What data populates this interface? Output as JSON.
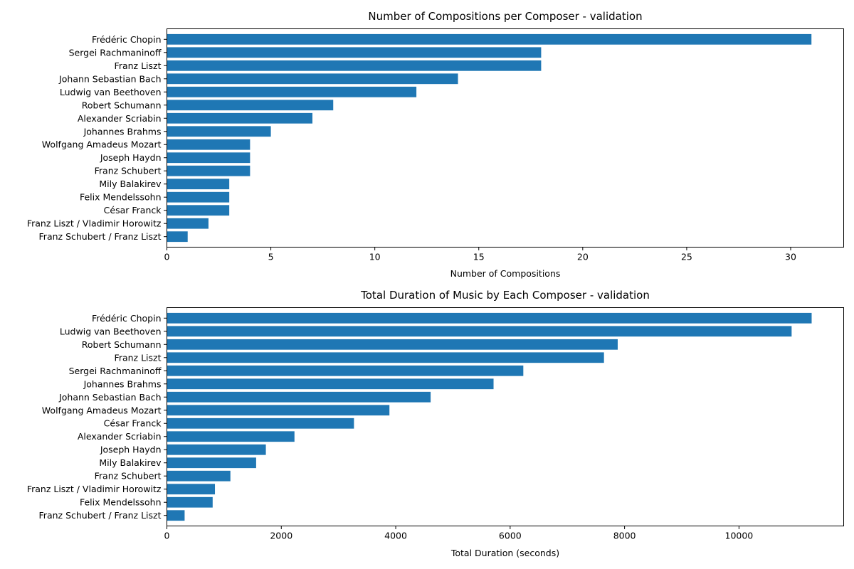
{
  "chart_data": [
    {
      "type": "bar",
      "orientation": "horizontal",
      "title": "Number of Compositions per Composer - validation",
      "xlabel": "Number of Compositions",
      "ylabel": "",
      "xlim": [
        0,
        32.55
      ],
      "xticks": [
        0,
        5,
        10,
        15,
        20,
        25,
        30
      ],
      "xtick_labels": [
        "0",
        "5",
        "10",
        "15",
        "20",
        "25",
        "30"
      ],
      "categories": [
        "Frédéric Chopin",
        "Sergei Rachmaninoff",
        "Franz Liszt",
        "Johann Sebastian Bach",
        "Ludwig van Beethoven",
        "Robert Schumann",
        "Alexander Scriabin",
        "Johannes Brahms",
        "Wolfgang Amadeus Mozart",
        "Joseph Haydn",
        "Franz Schubert",
        "Mily Balakirev",
        "Felix Mendelssohn",
        "César Franck",
        "Franz Liszt / Vladimir Horowitz",
        "Franz Schubert / Franz Liszt"
      ],
      "values": [
        31,
        18,
        18,
        14,
        12,
        8,
        7,
        5,
        4,
        4,
        4,
        3,
        3,
        3,
        2,
        1
      ],
      "color": "#1f77b4",
      "grid": false
    },
    {
      "type": "bar",
      "orientation": "horizontal",
      "title": "Total Duration of Music by Each Composer - validation",
      "xlabel": "Total Duration (seconds)",
      "ylabel": "",
      "xlim": [
        0,
        11830
      ],
      "xticks": [
        0,
        2000,
        4000,
        6000,
        8000,
        10000
      ],
      "xtick_labels": [
        "0",
        "2000",
        "4000",
        "6000",
        "8000",
        "10000"
      ],
      "categories": [
        "Frédéric Chopin",
        "Ludwig van Beethoven",
        "Robert Schumann",
        "Franz Liszt",
        "Sergei Rachmaninoff",
        "Johannes Brahms",
        "Johann Sebastian Bach",
        "Wolfgang Amadeus Mozart",
        "César Franck",
        "Alexander Scriabin",
        "Joseph Haydn",
        "Mily Balakirev",
        "Franz Schubert",
        "Franz Liszt / Vladimir Horowitz",
        "Felix Mendelssohn",
        "Franz Schubert / Franz Liszt"
      ],
      "values": [
        11270,
        10920,
        7880,
        7640,
        6230,
        5710,
        4610,
        3890,
        3270,
        2230,
        1730,
        1560,
        1110,
        840,
        800,
        310
      ],
      "color": "#1f77b4",
      "grid": false
    }
  ]
}
